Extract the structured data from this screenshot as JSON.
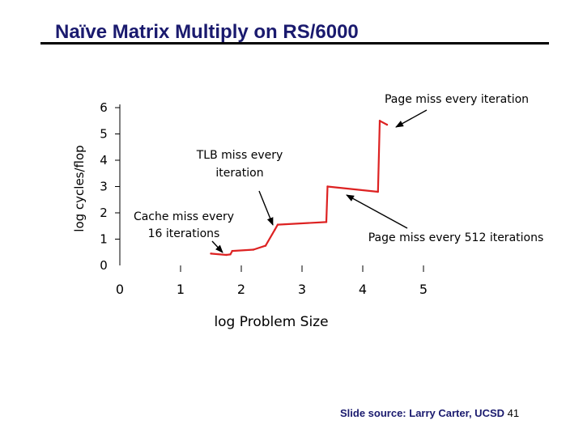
{
  "slide": {
    "title": "Naïve Matrix Multiply on RS/6000",
    "source": "Slide source: Larry Carter, UCSD",
    "page_number": "41"
  },
  "chart_data": {
    "type": "line",
    "title": "",
    "xlabel": "log Problem Size",
    "ylabel": "log cycles/flop",
    "xlim": [
      0,
      5
    ],
    "ylim": [
      0,
      6
    ],
    "xticks": [
      "0",
      "1",
      "2",
      "3",
      "4",
      "5"
    ],
    "yticks": [
      "0",
      "1",
      "2",
      "3",
      "4",
      "5",
      "6"
    ],
    "series": [
      {
        "name": "cycles/flop",
        "color": "#dd2222",
        "x": [
          1.5,
          1.75,
          1.82,
          1.85,
          2.2,
          2.4,
          2.55,
          2.6,
          3.4,
          3.42,
          4.25,
          4.28,
          4.4
        ],
        "y": [
          0.45,
          0.4,
          0.42,
          0.55,
          0.6,
          0.75,
          1.35,
          1.55,
          1.65,
          3.0,
          2.8,
          5.5,
          5.35
        ]
      }
    ],
    "annotations": [
      {
        "text": "Cache miss every 16 iterations",
        "lines": [
          "Cache miss every",
          "16 iterations"
        ]
      },
      {
        "text": "TLB miss every iteration",
        "lines": [
          "TLB miss every",
          "iteration"
        ]
      },
      {
        "text": "Page miss every 512 iterations",
        "lines": [
          "Page miss every 512 iterations"
        ]
      },
      {
        "text": "Page miss every iteration",
        "lines": [
          "Page miss every iteration"
        ]
      }
    ]
  }
}
